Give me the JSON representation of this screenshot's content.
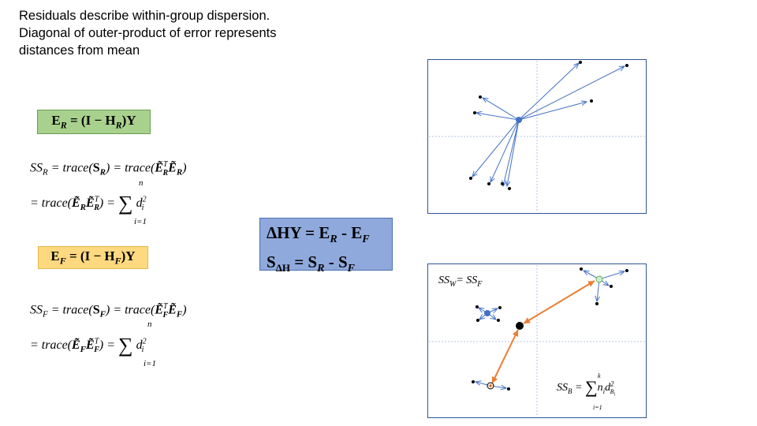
{
  "intro": {
    "line1": "Residuals describe within-group dispersion.",
    "line2": "Diagonal of outer-product of error represents",
    "line3": "distances from mean"
  },
  "eq_er": "E_R = (I − H_R)Y",
  "eq_ssr_1": "SS_R = trace(S_R) = trace(Ẽ_R^T Ẽ_R)",
  "eq_ssr_2": "= trace(Ẽ_R Ẽ_R^T) = Σ_{i=1}^{n} d_i^2",
  "eq_ef": "E_F = (I − H_F)Y",
  "eq_ssf_1": "SS_F = trace(S_F) = trace(Ẽ_F^T Ẽ_F)",
  "eq_ssf_2": "= trace(Ẽ_F Ẽ_F^T) = Σ_{i=1}^{n} d_i^2",
  "blue_box": {
    "line1": "ΔHY = E_R - E_F",
    "line2": "S_ΔH = S_R - S_F"
  },
  "plot_bottom": {
    "ssw_label": "SS_W= SS_F",
    "ssb_label": "SS_B = Σ_{i=1}^{k} n_i d_{B_i}^2"
  },
  "colors": {
    "green_box": "#a9d18e",
    "yellow_box": "#ffd980",
    "blue_box": "#8fa9dc",
    "arrow_blue": "#4472c4",
    "arrow_orange": "#ed7d31",
    "frame": "#2f5597"
  }
}
